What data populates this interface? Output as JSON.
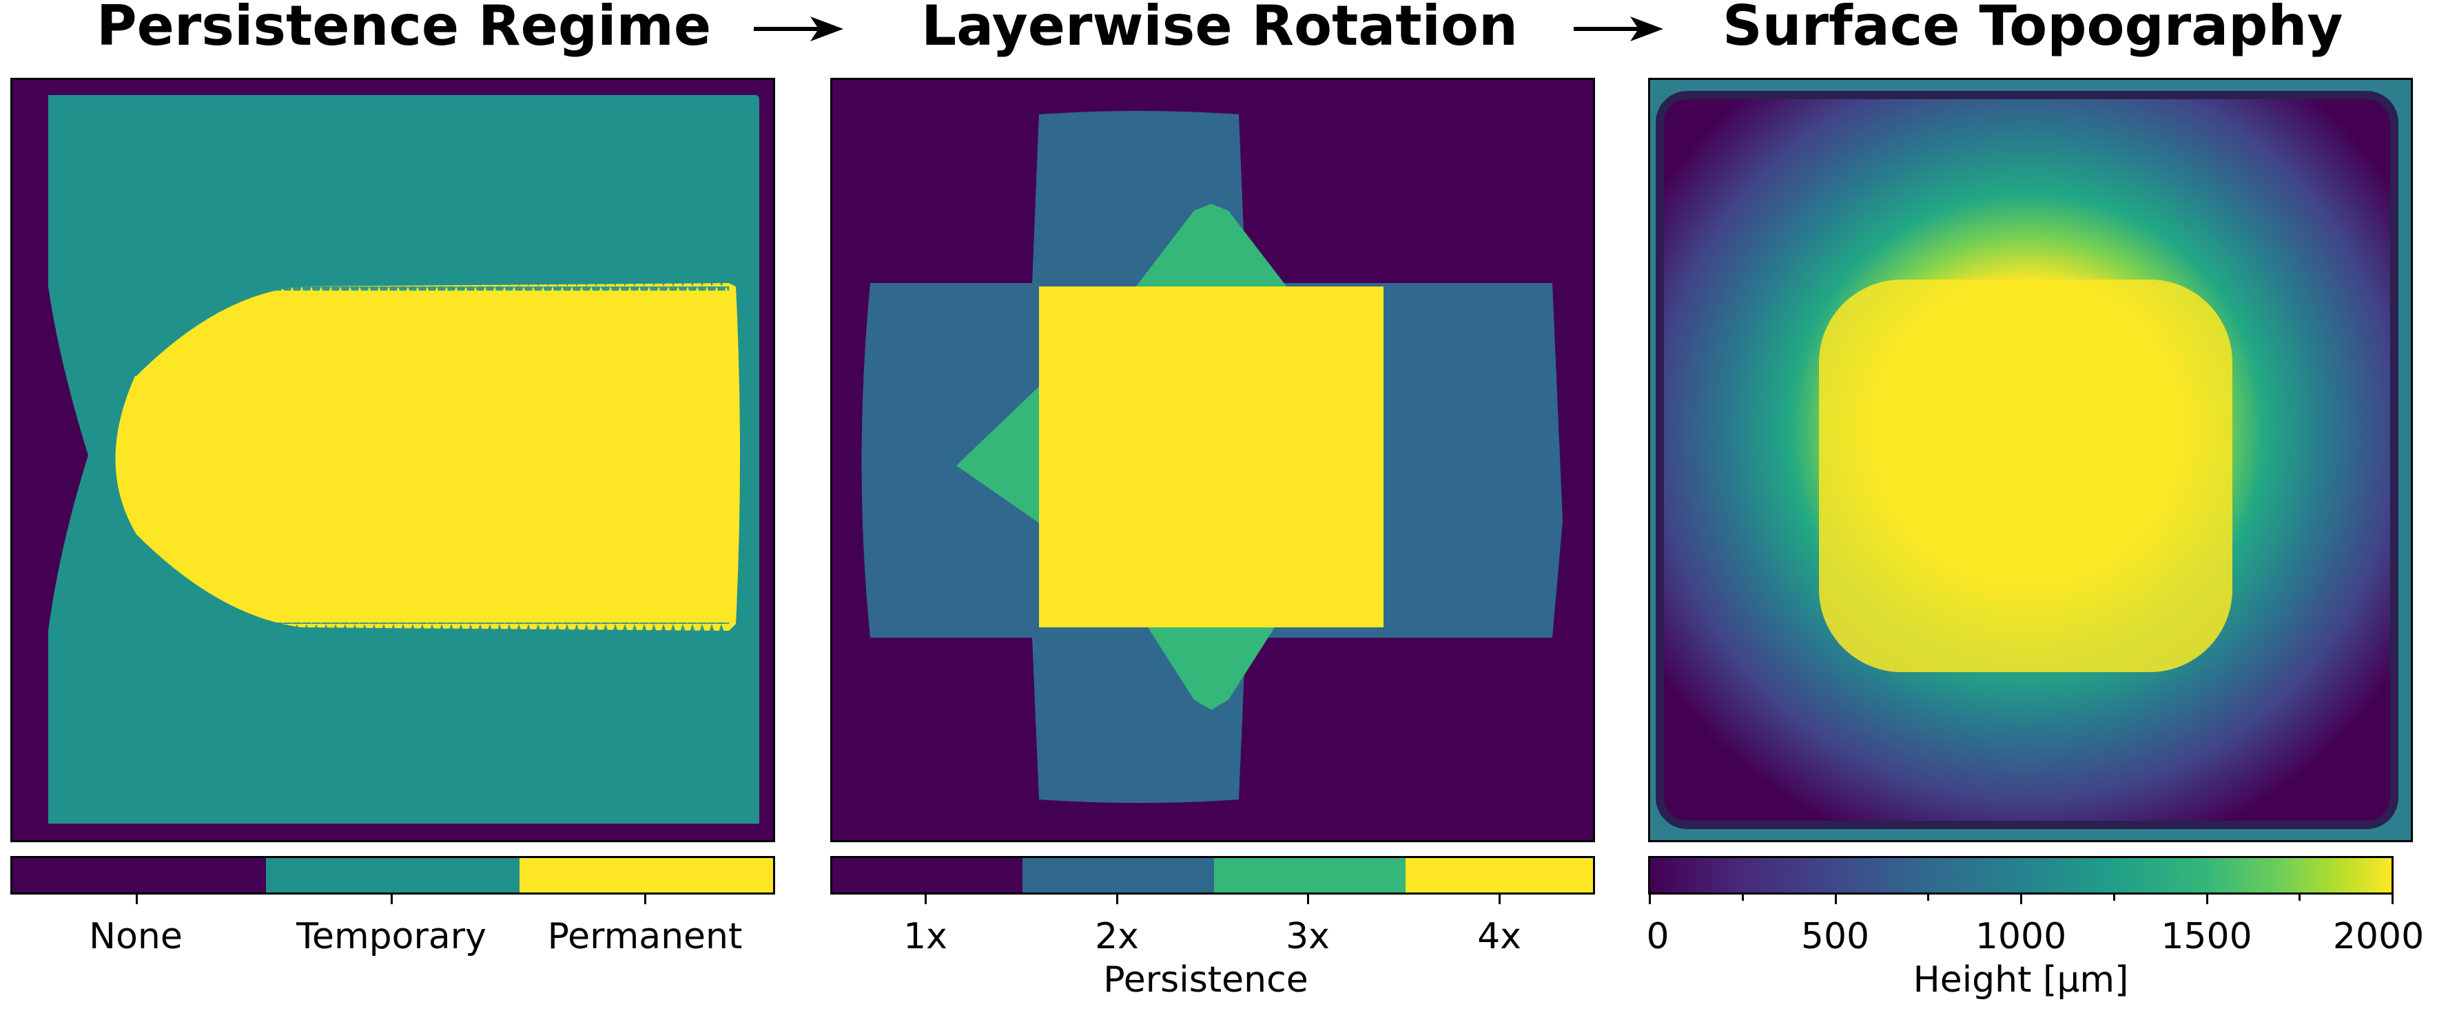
{
  "chart_data": [
    {
      "type": "heatmap",
      "title": "Persistence Regime",
      "colorbar": {
        "kind": "categorical",
        "categories": [
          "None",
          "Temporary",
          "Permanent"
        ],
        "colors": [
          "#440154",
          "#21918c",
          "#fde725"
        ],
        "label": ""
      }
    },
    {
      "type": "heatmap",
      "title": "Layerwise Rotation",
      "colorbar": {
        "kind": "categorical",
        "categories": [
          "1x",
          "2x",
          "3x",
          "4x"
        ],
        "colors": [
          "#440154",
          "#31688e",
          "#35b779",
          "#fde725"
        ],
        "label": "Persistence"
      }
    },
    {
      "type": "heatmap",
      "title": "Surface Topography",
      "colorbar": {
        "kind": "continuous",
        "colormap": "viridis",
        "range": [
          0,
          2000
        ],
        "major_ticks": [
          0,
          500,
          1000,
          1500,
          2000
        ],
        "minor_ticks": [
          250,
          750,
          1250,
          1750
        ],
        "label": "Height [μm]"
      }
    }
  ],
  "arrows": [
    "→",
    "→"
  ]
}
